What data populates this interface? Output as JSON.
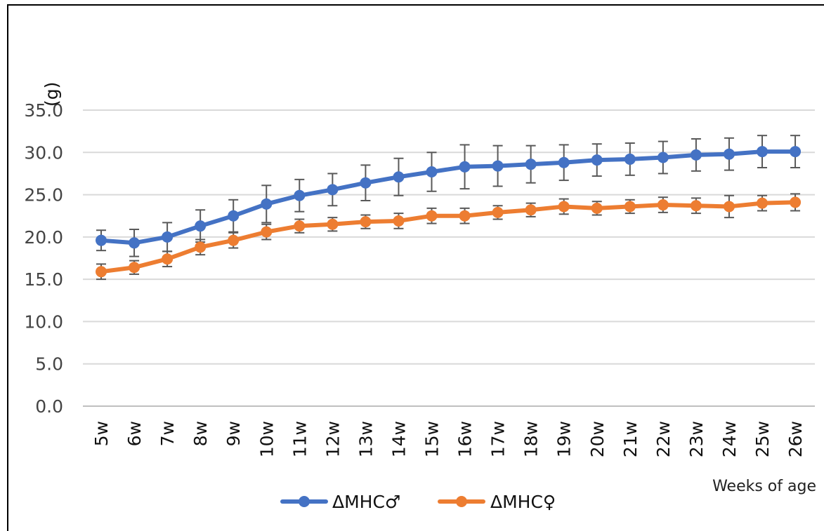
{
  "chart_data": {
    "type": "line",
    "unit_label": "(g)",
    "xlabel": "Weeks of age",
    "ylim": [
      0,
      35
    ],
    "yticks": [
      "0.0",
      "5.0",
      "10.0",
      "15.0",
      "20.0",
      "25.0",
      "30.0",
      "35.0"
    ],
    "grid": true,
    "legend_position": "bottom",
    "categories": [
      "5w",
      "6w",
      "7w",
      "8w",
      "9w",
      "10w",
      "11w",
      "12w",
      "13w",
      "14w",
      "15w",
      "16w",
      "17w",
      "18w",
      "19w",
      "20w",
      "21w",
      "22w",
      "23w",
      "24w",
      "25w",
      "26w"
    ],
    "series": [
      {
        "name": "ΔMHC♂",
        "color": "#4472C4",
        "values": [
          19.6,
          19.3,
          20.0,
          21.3,
          22.5,
          23.9,
          24.9,
          25.6,
          26.4,
          27.1,
          27.7,
          28.3,
          28.4,
          28.6,
          28.8,
          29.1,
          29.2,
          29.4,
          29.7,
          29.8,
          30.1,
          30.1
        ],
        "error": [
          1.2,
          1.6,
          1.7,
          1.9,
          1.9,
          2.2,
          1.9,
          1.9,
          2.1,
          2.2,
          2.3,
          2.6,
          2.4,
          2.2,
          2.1,
          1.9,
          1.9,
          1.9,
          1.9,
          1.9,
          1.9,
          1.9
        ]
      },
      {
        "name": "ΔMHC♀",
        "color": "#ED7D31",
        "values": [
          15.9,
          16.4,
          17.4,
          18.8,
          19.6,
          20.6,
          21.3,
          21.5,
          21.8,
          21.9,
          22.5,
          22.5,
          22.9,
          23.2,
          23.6,
          23.4,
          23.6,
          23.8,
          23.7,
          23.6,
          24.0,
          24.1
        ],
        "error": [
          0.9,
          0.8,
          0.9,
          0.9,
          0.9,
          0.9,
          0.8,
          0.8,
          0.8,
          0.9,
          0.9,
          0.9,
          0.8,
          0.8,
          0.9,
          0.8,
          0.8,
          0.9,
          0.9,
          1.3,
          0.9,
          1.0
        ]
      }
    ]
  }
}
